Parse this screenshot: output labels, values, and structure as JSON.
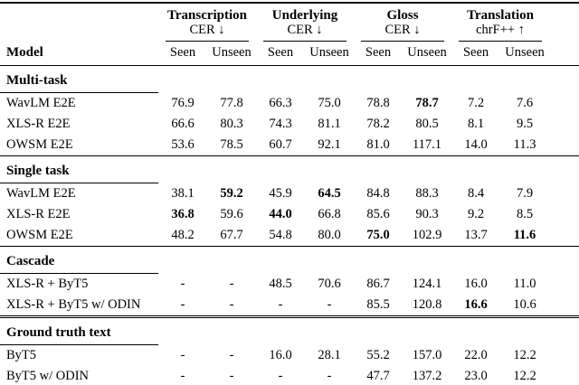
{
  "table": {
    "model_header": "Model",
    "groups": [
      {
        "name": "Transcription",
        "metric": "CER ↓"
      },
      {
        "name": "Underlying",
        "metric": "CER ↓"
      },
      {
        "name": "Gloss",
        "metric": "CER ↓"
      },
      {
        "name": "Translation",
        "metric": "chrF++ ↑"
      }
    ],
    "sub_labels": [
      "Seen",
      "Unseen",
      "Seen",
      "Unseen",
      "Seen",
      "Unseen",
      "Seen",
      "Unseen"
    ],
    "sections": [
      {
        "title": "Multi-task",
        "rows": [
          {
            "model": "WavLM E2E",
            "values": [
              "76.9",
              "77.8",
              "66.3",
              "75.0",
              "78.8",
              "78.7",
              "7.2",
              "7.6"
            ],
            "bold": [
              5
            ]
          },
          {
            "model": "XLS-R E2E",
            "values": [
              "66.6",
              "80.3",
              "74.3",
              "81.1",
              "78.2",
              "80.5",
              "8.1",
              "9.5"
            ],
            "bold": []
          },
          {
            "model": "OWSM E2E",
            "values": [
              "53.6",
              "78.5",
              "60.7",
              "92.1",
              "81.0",
              "117.1",
              "14.0",
              "11.3"
            ],
            "bold": []
          }
        ]
      },
      {
        "title": "Single task",
        "rows": [
          {
            "model": "WavLM E2E",
            "values": [
              "38.1",
              "59.2",
              "45.9",
              "64.5",
              "84.8",
              "88.3",
              "8.4",
              "7.9"
            ],
            "bold": [
              1,
              3
            ]
          },
          {
            "model": "XLS-R E2E",
            "values": [
              "36.8",
              "59.6",
              "44.0",
              "66.8",
              "85.6",
              "90.3",
              "9.2",
              "8.5"
            ],
            "bold": [
              0,
              2
            ]
          },
          {
            "model": "OWSM E2E",
            "values": [
              "48.2",
              "67.7",
              "54.8",
              "80.0",
              "75.0",
              "102.9",
              "13.7",
              "11.6"
            ],
            "bold": [
              4,
              7
            ]
          }
        ]
      },
      {
        "title": "Cascade",
        "rows": [
          {
            "model": "XLS-R + ByT5",
            "values": [
              "-",
              "-",
              "48.5",
              "70.6",
              "86.7",
              "124.1",
              "16.0",
              "11.0"
            ],
            "bold": []
          },
          {
            "model": "XLS-R + ByT5 w/ ODIN",
            "values": [
              "-",
              "-",
              "-",
              "-",
              "85.5",
              "120.8",
              "16.6",
              "10.6"
            ],
            "bold": [
              6
            ]
          }
        ]
      },
      {
        "title": "Ground truth text",
        "rows": [
          {
            "model": "ByT5",
            "values": [
              "-",
              "-",
              "16.0",
              "28.1",
              "55.2",
              "157.0",
              "22.0",
              "12.2"
            ],
            "bold": []
          },
          {
            "model": "ByT5 w/ ODIN",
            "values": [
              "-",
              "-",
              "-",
              "-",
              "47.7",
              "137.2",
              "23.0",
              "12.2"
            ],
            "bold": []
          }
        ]
      }
    ]
  }
}
